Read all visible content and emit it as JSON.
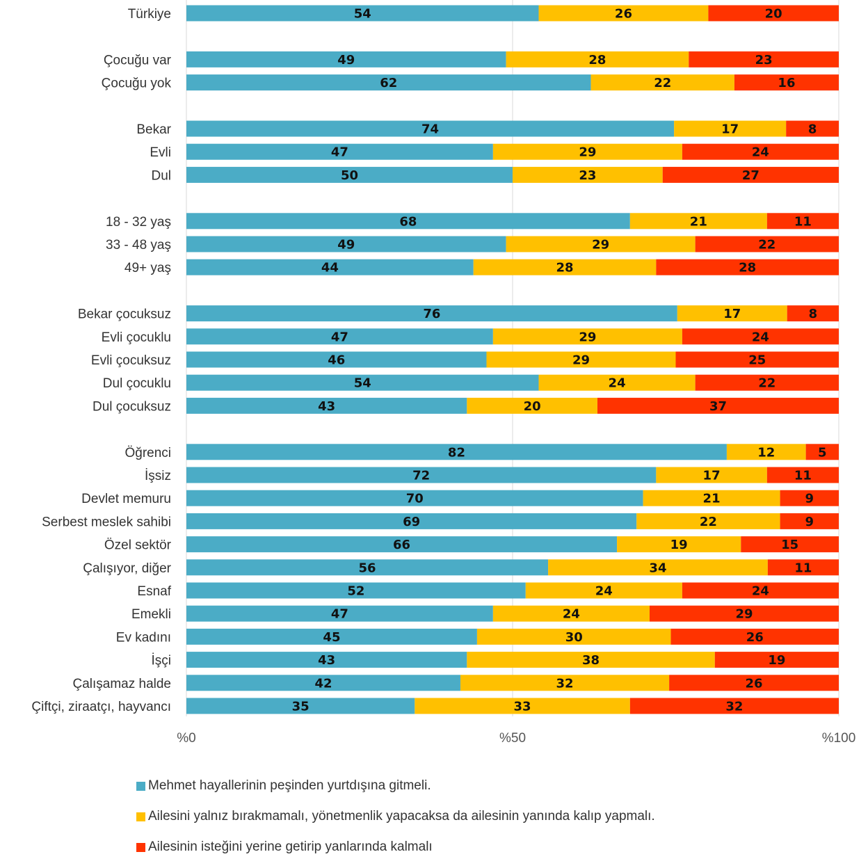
{
  "chart_data": {
    "type": "bar",
    "orientation": "horizontal",
    "stacked": true,
    "categories": [
      "Türkiye",
      "Çocuğu var",
      "Çocuğu yok",
      "Bekar",
      "Evli",
      "Dul",
      "18 - 32 yaş",
      "33 - 48 yaş",
      "49+ yaş",
      "Bekar çocuksuz",
      "Evli çocuklu",
      "Evli çocuksuz",
      "Dul çocuklu",
      "Dul çocuksuz",
      "Öğrenci",
      "İşsiz",
      "Devlet memuru",
      "Serbest meslek sahibi",
      "Özel sektör",
      "Çalışıyor, diğer",
      "Esnaf",
      "Emekli",
      "Ev kadını",
      "İşçi",
      "Çalışamaz halde",
      "Çiftçi, ziraatçı, hayvancı"
    ],
    "groups": [
      [
        0
      ],
      [
        1,
        2
      ],
      [
        3,
        4,
        5
      ],
      [
        6,
        7,
        8
      ],
      [
        9,
        10,
        11,
        12,
        13
      ],
      [
        14,
        15,
        16,
        17,
        18,
        19,
        20,
        21,
        22,
        23,
        24,
        25
      ]
    ],
    "series": [
      {
        "name": "Mehmet hayallerinin peşinden yurtdışına gitmeli.",
        "color": "#4bacc6",
        "values": [
          54,
          49,
          62,
          74,
          47,
          50,
          68,
          49,
          44,
          76,
          47,
          46,
          54,
          43,
          82,
          72,
          70,
          69,
          66,
          56,
          52,
          47,
          45,
          43,
          42,
          35
        ]
      },
      {
        "name": "Ailesini yalnız bırakmamalı, yönetmenlik yapacaksa da ailesinin yanında kalıp yapmalı.",
        "color": "#ffc000",
        "values": [
          26,
          28,
          22,
          17,
          29,
          23,
          21,
          29,
          28,
          17,
          29,
          29,
          24,
          20,
          12,
          17,
          21,
          22,
          19,
          34,
          24,
          24,
          30,
          38,
          32,
          33
        ]
      },
      {
        "name": "Ailesinin isteğini yerine getirip yanlarında kalmalı",
        "color": "#ff3300",
        "values": [
          20,
          23,
          16,
          8,
          24,
          27,
          11,
          22,
          28,
          8,
          24,
          25,
          22,
          37,
          5,
          11,
          9,
          9,
          15,
          11,
          24,
          29,
          26,
          19,
          26,
          32
        ]
      }
    ],
    "xlim": [
      0,
      100
    ],
    "x_ticks": [
      "%0",
      "%50",
      "%100"
    ],
    "x_tick_values": [
      0,
      50,
      100
    ],
    "grid": true,
    "legend_position": "bottom-left",
    "title": "",
    "xlabel": "",
    "ylabel": ""
  }
}
